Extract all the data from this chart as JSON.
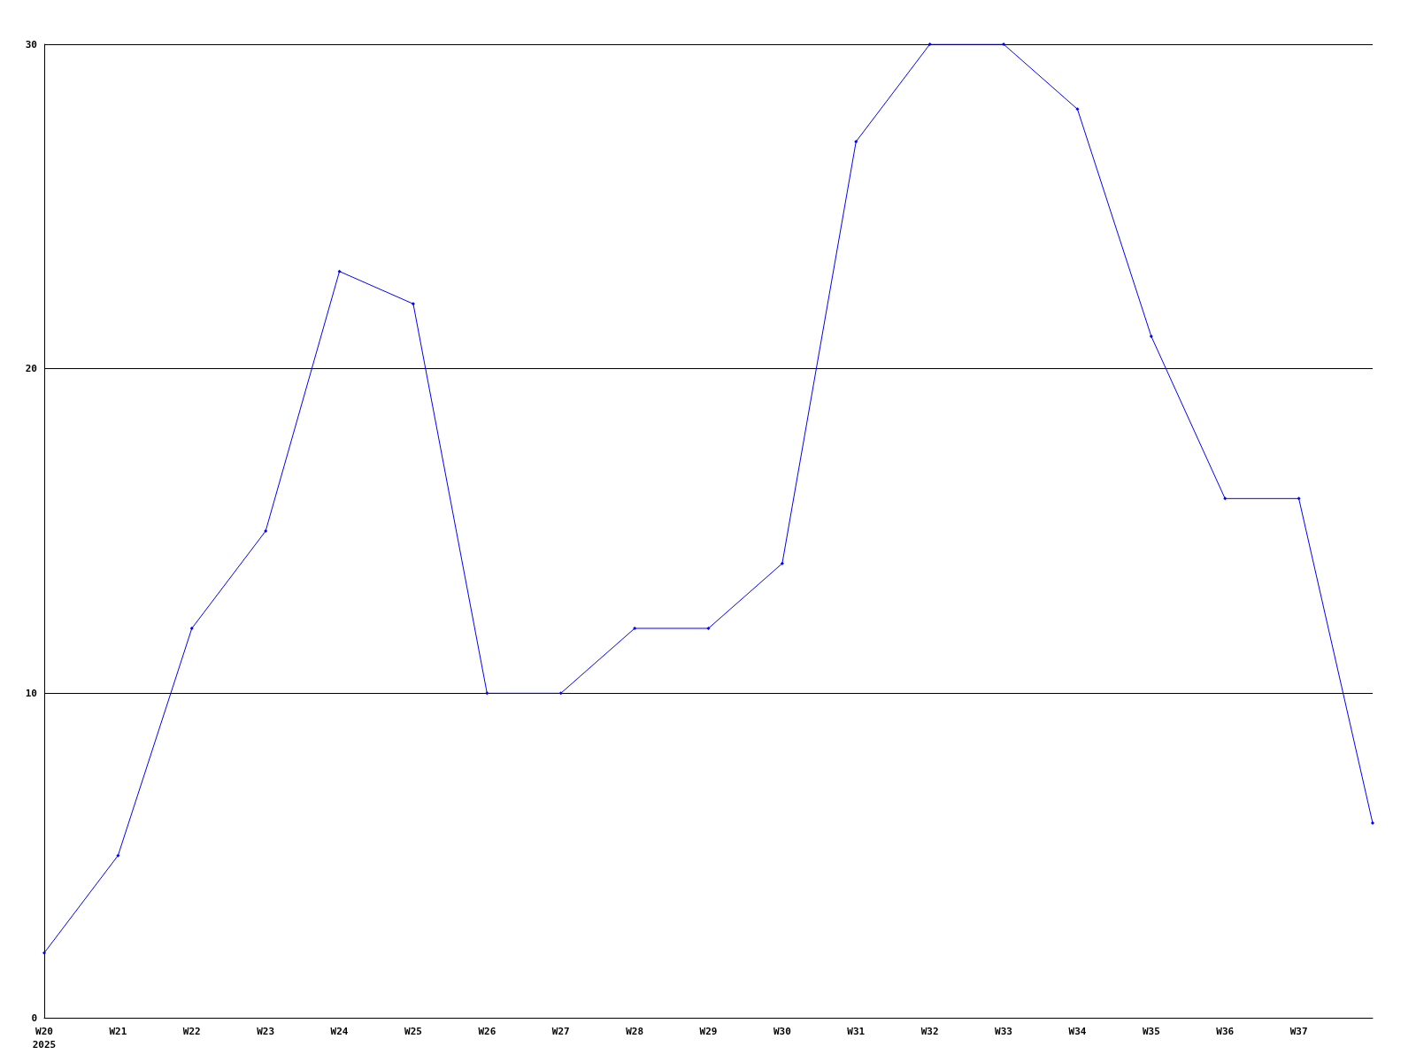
{
  "chart_data": {
    "type": "line",
    "categories": [
      "W20\n2025",
      "W21",
      "W22",
      "W23",
      "W24",
      "W25",
      "W26",
      "W27",
      "W28",
      "W29",
      "W30",
      "W31",
      "W32",
      "W33",
      "W34",
      "W35",
      "W36",
      "W37",
      null
    ],
    "series": [
      {
        "color": "#0000ff",
        "values": [
          2,
          5,
          12,
          15,
          23,
          22,
          10,
          10,
          12,
          12,
          14,
          27,
          30,
          30,
          28,
          21,
          16,
          16,
          6
        ]
      }
    ],
    "ylim": [
      0,
      30
    ],
    "yticks": [
      0,
      10,
      20,
      30
    ],
    "grid": "y",
    "marker": "diamond",
    "line_style": "solid"
  }
}
